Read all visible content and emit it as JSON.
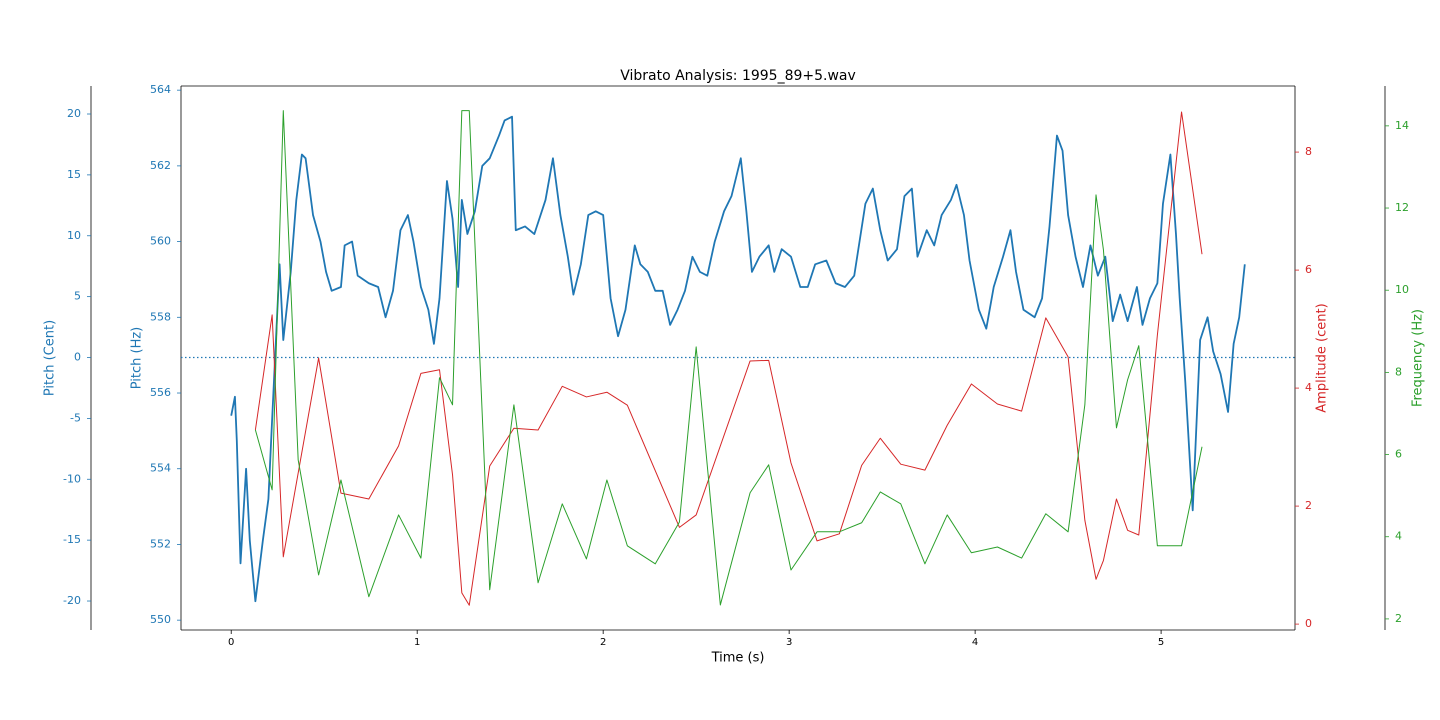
{
  "chart_data": {
    "type": "line",
    "title": "Vibrato Analysis: 1995_89+5.wav",
    "xlabel": "Time (s)",
    "xlim": [
      -0.27,
      5.72
    ],
    "xticks": [
      0,
      1,
      2,
      3,
      4,
      5
    ],
    "y_axes": [
      {
        "label": "Pitch (Cent)",
        "lim": [
          -22.38,
          22.3
        ],
        "ticks": [
          -20,
          -15,
          -10,
          -5,
          0,
          5,
          10,
          15,
          20
        ],
        "color": "#1f77b4"
      },
      {
        "label": "Pitch (Hz)",
        "lim": [
          549.74,
          564.11
        ],
        "ticks": [
          550,
          552,
          554,
          556,
          558,
          560,
          562,
          564
        ],
        "color": "#1f77b4"
      },
      {
        "label": "Amplitude (cent)",
        "lim": [
          -0.1,
          9.12
        ],
        "ticks": [
          0,
          2,
          4,
          6,
          8
        ],
        "color": "#d62728"
      },
      {
        "label": "Frequency (Hz)",
        "lim": [
          1.73,
          14.97
        ],
        "ticks": [
          2,
          4,
          6,
          8,
          10,
          12,
          14
        ],
        "color": "#2ca02c"
      }
    ],
    "hline": {
      "axis": 0,
      "value": 0,
      "color": "#1f77b4"
    },
    "series": [
      {
        "axis": 1,
        "color": "#1f77b4",
        "x": [
          0,
          0.02,
          0.03,
          0.05,
          0.08,
          0.1,
          0.13,
          0.17,
          0.2,
          0.22,
          0.26,
          0.28,
          0.32,
          0.35,
          0.38,
          0.4,
          0.44,
          0.48,
          0.51,
          0.54,
          0.59,
          0.61,
          0.65,
          0.68,
          0.74,
          0.79,
          0.83,
          0.87,
          0.91,
          0.95,
          0.98,
          1.02,
          1.06,
          1.09,
          1.12,
          1.16,
          1.19,
          1.22,
          1.24,
          1.27,
          1.31,
          1.35,
          1.39,
          1.44,
          1.47,
          1.51,
          1.53,
          1.58,
          1.63,
          1.69,
          1.73,
          1.77,
          1.81,
          1.84,
          1.88,
          1.92,
          1.96,
          2.0,
          2.04,
          2.08,
          2.12,
          2.17,
          2.2,
          2.24,
          2.28,
          2.32,
          2.36,
          2.4,
          2.44,
          2.48,
          2.52,
          2.56,
          2.6,
          2.65,
          2.69,
          2.74,
          2.77,
          2.8,
          2.84,
          2.89,
          2.92,
          2.96,
          3.01,
          3.06,
          3.1,
          3.14,
          3.2,
          3.25,
          3.3,
          3.35,
          3.41,
          3.45,
          3.49,
          3.53,
          3.58,
          3.62,
          3.66,
          3.69,
          3.74,
          3.78,
          3.82,
          3.87,
          3.9,
          3.94,
          3.97,
          4.02,
          4.06,
          4.1,
          4.15,
          4.19,
          4.22,
          4.26,
          4.32,
          4.36,
          4.4,
          4.44,
          4.47,
          4.5,
          4.54,
          4.58,
          4.62,
          4.66,
          4.7,
          4.74,
          4.78,
          4.82,
          4.87,
          4.9,
          4.94,
          4.98,
          5.01,
          5.05,
          5.08,
          5.1,
          5.13,
          5.17,
          5.21,
          5.25,
          5.28,
          5.32,
          5.36,
          5.39,
          5.42,
          5.45
        ],
        "values": [
          555.4,
          555.9,
          554.75,
          551.5,
          554.0,
          552.1,
          550.5,
          552.1,
          553.2,
          555.3,
          559.4,
          557.4,
          559.2,
          561.1,
          562.3,
          562.2,
          560.7,
          560.0,
          559.2,
          558.7,
          558.8,
          559.9,
          560.0,
          559.1,
          558.9,
          558.8,
          558.0,
          558.7,
          560.3,
          560.7,
          560.0,
          558.8,
          558.2,
          557.3,
          558.5,
          561.6,
          560.6,
          558.8,
          561.1,
          560.2,
          560.8,
          562.0,
          562.2,
          562.8,
          563.2,
          563.3,
          560.3,
          560.4,
          560.2,
          561.1,
          562.2,
          560.7,
          559.6,
          558.6,
          559.4,
          560.7,
          560.8,
          560.7,
          558.5,
          557.5,
          558.2,
          559.9,
          559.4,
          559.2,
          558.7,
          558.7,
          557.8,
          558.2,
          558.7,
          559.6,
          559.2,
          559.1,
          560.0,
          560.8,
          561.2,
          562.2,
          560.8,
          559.2,
          559.6,
          559.9,
          559.2,
          559.8,
          559.6,
          558.8,
          558.8,
          559.4,
          559.5,
          558.9,
          558.8,
          559.1,
          561.0,
          561.4,
          560.3,
          559.5,
          559.8,
          561.2,
          561.4,
          559.6,
          560.3,
          559.9,
          560.7,
          561.1,
          561.5,
          560.7,
          559.5,
          558.2,
          557.7,
          558.8,
          559.6,
          560.3,
          559.2,
          558.2,
          558.0,
          558.5,
          560.4,
          562.8,
          562.4,
          560.7,
          559.6,
          558.8,
          559.9,
          559.1,
          559.6,
          557.9,
          558.6,
          557.9,
          558.8,
          557.8,
          558.5,
          558.9,
          561.0,
          562.3,
          560.2,
          558.5,
          556.3,
          552.9,
          557.4,
          558.0,
          557.1,
          556.5,
          555.5,
          557.3,
          558.0,
          559.4
        ]
      },
      {
        "axis": 2,
        "color": "#d62728",
        "x": [
          0.13,
          0.22,
          0.28,
          0.47,
          0.59,
          0.74,
          0.9,
          1.02,
          1.12,
          1.19,
          1.24,
          1.28,
          1.39,
          1.52,
          1.65,
          1.78,
          1.91,
          2.02,
          2.13,
          2.41,
          2.5,
          2.79,
          2.89,
          3.01,
          3.15,
          3.27,
          3.39,
          3.49,
          3.6,
          3.73,
          3.85,
          3.98,
          4.12,
          4.25,
          4.38,
          4.5,
          4.59,
          4.65,
          4.69,
          4.76,
          4.82,
          4.88,
          4.98,
          5.11,
          5.22
        ],
        "values": [
          3.29,
          5.24,
          1.14,
          4.51,
          2.22,
          2.12,
          3.02,
          4.25,
          4.31,
          2.53,
          0.53,
          0.32,
          2.68,
          3.32,
          3.29,
          4.03,
          3.85,
          3.93,
          3.71,
          1.64,
          1.85,
          4.46,
          4.47,
          2.73,
          1.41,
          1.53,
          2.69,
          3.15,
          2.71,
          2.61,
          3.37,
          4.07,
          3.73,
          3.61,
          5.19,
          4.53,
          1.76,
          0.76,
          1.08,
          2.12,
          1.59,
          1.51,
          4.9,
          8.68,
          6.27
        ]
      },
      {
        "axis": 3,
        "color": "#2ca02c",
        "x": [
          0.13,
          0.22,
          0.28,
          0.36,
          0.47,
          0.59,
          0.74,
          0.9,
          1.02,
          1.12,
          1.19,
          1.24,
          1.28,
          1.39,
          1.52,
          1.65,
          1.78,
          1.91,
          2.02,
          2.13,
          2.28,
          2.41,
          2.5,
          2.63,
          2.79,
          2.89,
          3.01,
          3.15,
          3.27,
          3.39,
          3.49,
          3.6,
          3.73,
          3.85,
          3.98,
          4.12,
          4.25,
          4.38,
          4.5,
          4.59,
          4.65,
          4.69,
          4.76,
          4.82,
          4.88,
          4.98,
          5.11,
          5.22
        ],
        "values": [
          6.6,
          5.14,
          14.37,
          5.87,
          3.07,
          5.38,
          2.54,
          4.53,
          3.48,
          7.87,
          7.21,
          14.37,
          14.37,
          2.71,
          7.21,
          2.88,
          4.8,
          3.46,
          5.38,
          3.78,
          3.34,
          4.36,
          8.62,
          2.34,
          5.07,
          5.75,
          3.19,
          4.12,
          4.12,
          4.34,
          5.09,
          4.8,
          3.34,
          4.53,
          3.61,
          3.75,
          3.48,
          4.56,
          4.12,
          7.21,
          12.32,
          10.98,
          6.65,
          7.82,
          8.65,
          3.78,
          3.78,
          6.19
        ]
      }
    ]
  }
}
